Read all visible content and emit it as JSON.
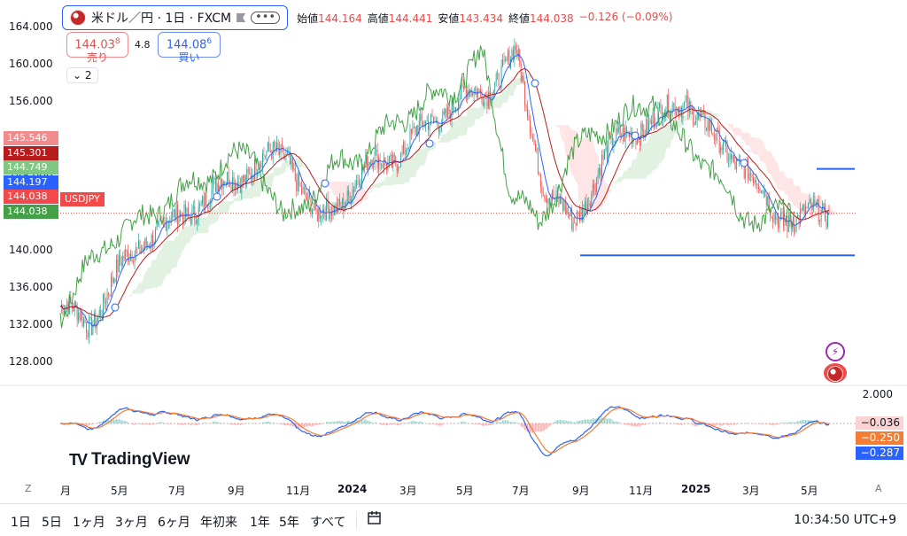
{
  "legend": {
    "symbol": "米ドル／円 · 1日 · FXCM",
    "more": "•••",
    "ohlc": [
      {
        "k": "始値",
        "v": "144.164"
      },
      {
        "k": "高値",
        "v": "144.441"
      },
      {
        "k": "安値",
        "v": "143.434"
      },
      {
        "k": "終値",
        "v": "144.038"
      },
      {
        "k": "",
        "v": "−0.126 (−0.09%)"
      }
    ]
  },
  "trade": {
    "sell_price": "144.03",
    "sell_sup": "8",
    "sell_label": "売り",
    "spread": "4.8",
    "buy_price": "144.08",
    "buy_sup": "6",
    "buy_label": "買い"
  },
  "indicators_toggle": "2",
  "yaxis": [
    "164.000",
    "160.000",
    "156.000",
    "152.000",
    "148.000",
    "144.000",
    "140.000",
    "136.000",
    "132.000",
    "128.000"
  ],
  "price_tags": [
    {
      "label": "145.546",
      "color": "#f28b8b"
    },
    {
      "label": "145.301",
      "color": "#b71c1c"
    },
    {
      "label": "144.749",
      "color": "#81c784"
    },
    {
      "label": "144.197",
      "color": "#2962ff"
    },
    {
      "label": "144.038",
      "color": "#f24a4a"
    },
    {
      "label": "144.038",
      "color": "#43a047"
    }
  ],
  "symbol_tag": "USDJPY",
  "macd": {
    "scale": "2.000",
    "tags": [
      {
        "label": "−0.036",
        "color": "#fbd3d3",
        "text": "#131722"
      },
      {
        "label": "−0.250",
        "color": "#f57c33",
        "text": "#ffffff"
      },
      {
        "label": "−0.287",
        "color": "#2962ff",
        "text": "#ffffff"
      }
    ]
  },
  "xaxis": [
    {
      "label": "月",
      "bold": false
    },
    {
      "label": "5月",
      "bold": false
    },
    {
      "label": "7月",
      "bold": false
    },
    {
      "label": "9月",
      "bold": false
    },
    {
      "label": "11月",
      "bold": false
    },
    {
      "label": "2024",
      "bold": true
    },
    {
      "label": "3月",
      "bold": false
    },
    {
      "label": "5月",
      "bold": false
    },
    {
      "label": "7月",
      "bold": false
    },
    {
      "label": "9月",
      "bold": false
    },
    {
      "label": "11月",
      "bold": false
    },
    {
      "label": "2025",
      "bold": true
    },
    {
      "label": "3月",
      "bold": false
    },
    {
      "label": "5月",
      "bold": false
    }
  ],
  "branding": "TradingView",
  "zoom_icon": "Z",
  "auto_icon": "A",
  "ranges": [
    "1日",
    "5日",
    "1ヶ月",
    "3ヶ月",
    "6ヶ月",
    "年初来",
    "1年",
    "5年",
    "すべて"
  ],
  "clock": "10:34:50 UTC+9",
  "colors": {
    "up_candle": "#26a69a",
    "down_candle": "#ef5350",
    "price_line": "#2962ff",
    "base_line": "#b71c1c",
    "lagging_span": "#43a047",
    "cloud_bull": "#c8e6c9",
    "cloud_bear": "#ffcdd2",
    "support_line": "#2962ff",
    "macd_line": "#2962ff",
    "signal_line": "#f57c33"
  },
  "chart_data": {
    "type": "line",
    "title": "米ドル／円 · 1日 · FXCM",
    "ylim": [
      126,
      166
    ],
    "ticks_y": [
      128,
      132,
      136,
      140,
      144,
      148,
      152,
      156,
      160,
      164
    ],
    "x": [
      "2023-03",
      "2023-04",
      "2023-05",
      "2023-06",
      "2023-07",
      "2023-08",
      "2023-09",
      "2023-10",
      "2023-11",
      "2023-12",
      "2024-01",
      "2024-02",
      "2024-03",
      "2024-04",
      "2024-05",
      "2024-06",
      "2024-07",
      "2024-08",
      "2024-09",
      "2024-10",
      "2024-11",
      "2024-12",
      "2025-01",
      "2025-02",
      "2025-03",
      "2025-04",
      "2025-05",
      "2025-06"
    ],
    "series": [
      {
        "name": "USDJPY",
        "values": [
          134,
          132,
          137.5,
          141.5,
          143,
          145.5,
          147.5,
          149.5,
          150.5,
          143,
          146,
          149.5,
          150.5,
          154,
          156,
          157.5,
          161,
          147,
          142.5,
          149.5,
          153,
          154,
          156.5,
          151.5,
          149.5,
          144,
          143.5,
          144.038
        ]
      }
    ],
    "support_level": 139.5,
    "resistance_level": 148.8
  }
}
